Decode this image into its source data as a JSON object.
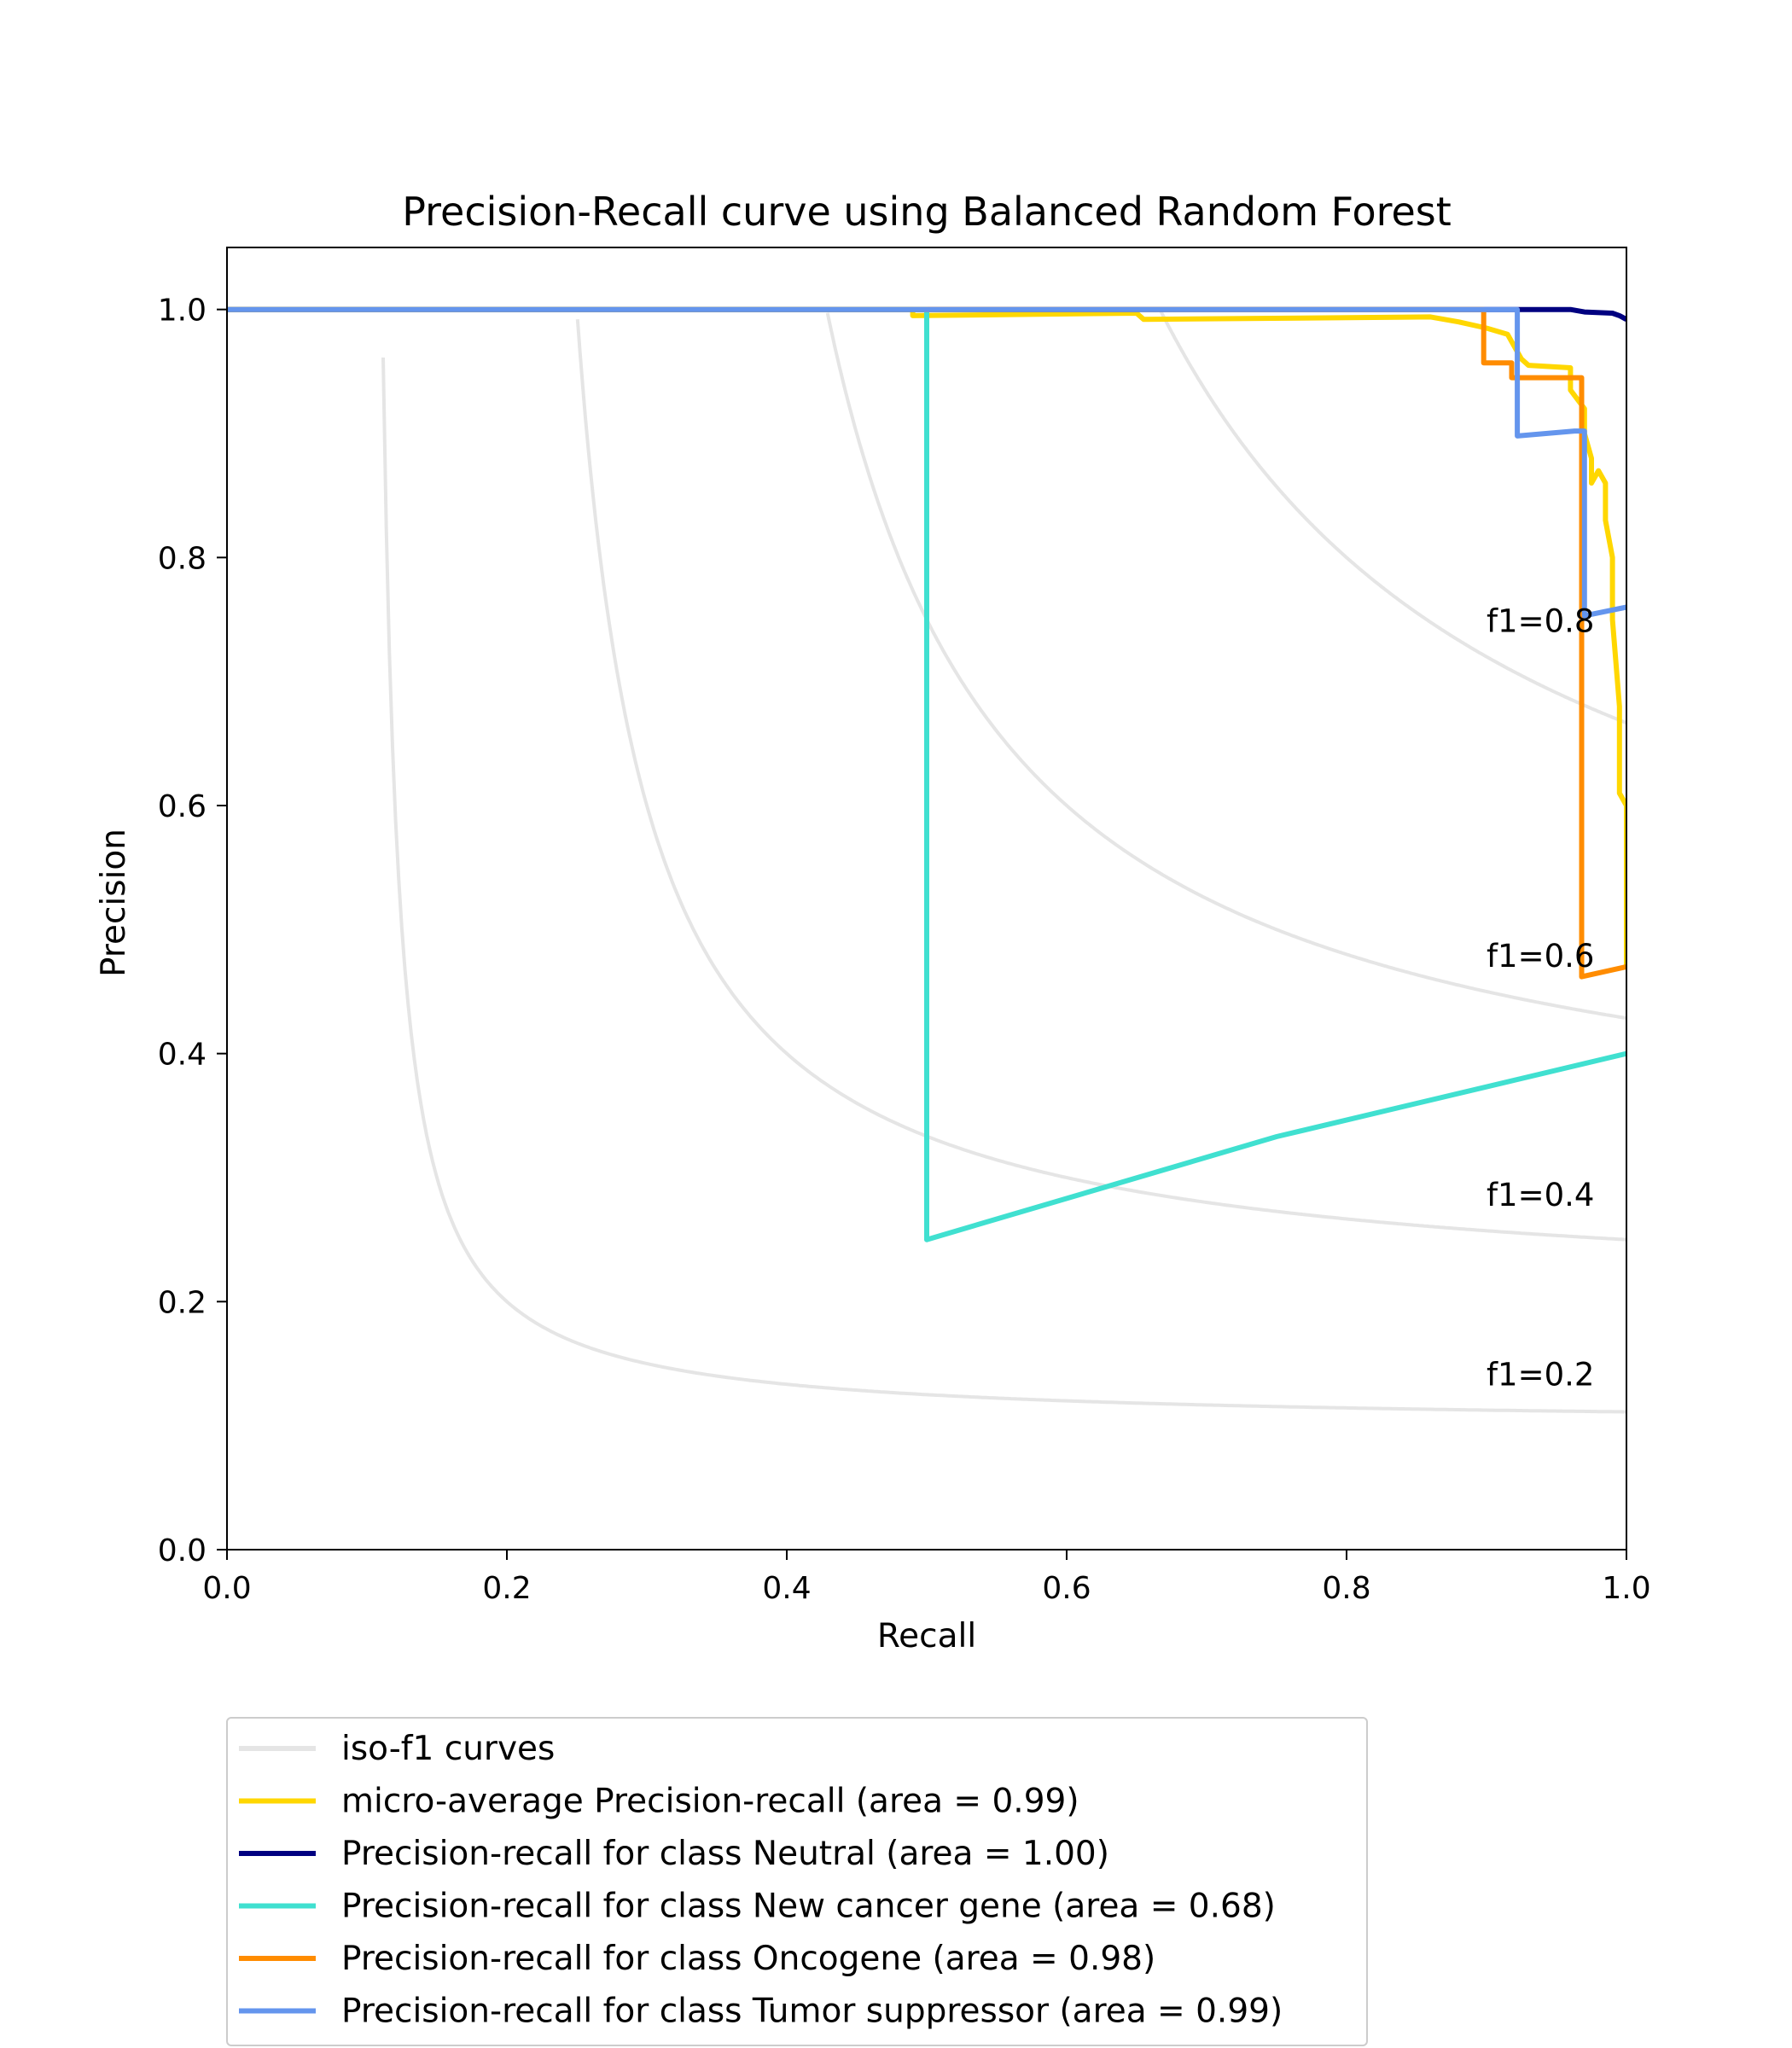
{
  "chart_data": {
    "type": "line",
    "title": "Precision-Recall curve using Balanced Random Forest",
    "xlabel": "Recall",
    "ylabel": "Precision",
    "xlim": [
      0.0,
      1.0
    ],
    "ylim": [
      0.0,
      1.05
    ],
    "xticks": [
      "0.0",
      "0.2",
      "0.4",
      "0.6",
      "0.8",
      "1.0"
    ],
    "yticks": [
      "0.0",
      "0.2",
      "0.4",
      "0.6",
      "0.8",
      "1.0"
    ],
    "grid": false,
    "legend_position": "below plot",
    "iso_f1": {
      "legend": "iso-f1 curves",
      "color": "#e5e5e5",
      "values": [
        0.2,
        0.4,
        0.6,
        0.8
      ],
      "labels": [
        "f1=0.2",
        "f1=0.4",
        "f1=0.6",
        "f1=0.8"
      ],
      "label_recall": 0.9
    },
    "series": [
      {
        "name": "micro-average Precision-recall (area = 0.99)",
        "color": "#ffd700",
        "points": [
          [
            0.0,
            1.0
          ],
          [
            0.49,
            1.0
          ],
          [
            0.49,
            0.995
          ],
          [
            0.65,
            0.997
          ],
          [
            0.655,
            0.992
          ],
          [
            0.86,
            0.994
          ],
          [
            0.88,
            0.99
          ],
          [
            0.9,
            0.985
          ],
          [
            0.915,
            0.98
          ],
          [
            0.92,
            0.97
          ],
          [
            0.925,
            0.96
          ],
          [
            0.93,
            0.955
          ],
          [
            0.96,
            0.953
          ],
          [
            0.96,
            0.935
          ],
          [
            0.97,
            0.92
          ],
          [
            0.97,
            0.9
          ],
          [
            0.975,
            0.88
          ],
          [
            0.975,
            0.86
          ],
          [
            0.98,
            0.87
          ],
          [
            0.985,
            0.86
          ],
          [
            0.985,
            0.83
          ],
          [
            0.99,
            0.8
          ],
          [
            0.99,
            0.75
          ],
          [
            0.995,
            0.68
          ],
          [
            0.995,
            0.61
          ],
          [
            1.0,
            0.6
          ],
          [
            1.0,
            0.555
          ],
          [
            1.0,
            0.47
          ]
        ]
      },
      {
        "name": "Precision-recall for class Neutral (area = 1.00)",
        "color": "#000080",
        "points": [
          [
            0.0,
            1.0
          ],
          [
            0.92,
            1.0
          ],
          [
            0.96,
            1.0
          ],
          [
            0.97,
            0.998
          ],
          [
            0.99,
            0.997
          ],
          [
            0.995,
            0.995
          ],
          [
            1.0,
            0.992
          ]
        ]
      },
      {
        "name": "Precision-recall for class New cancer gene (area = 0.68)",
        "color": "#40e0d0",
        "points": [
          [
            0.0,
            1.0
          ],
          [
            0.5,
            1.0
          ],
          [
            0.5,
            0.25
          ],
          [
            0.75,
            0.333
          ],
          [
            1.0,
            0.4
          ]
        ]
      },
      {
        "name": "Precision-recall for class Oncogene (area = 0.98)",
        "color": "#ff8c00",
        "points": [
          [
            0.0,
            1.0
          ],
          [
            0.898,
            1.0
          ],
          [
            0.898,
            0.957
          ],
          [
            0.918,
            0.957
          ],
          [
            0.918,
            0.945
          ],
          [
            0.968,
            0.945
          ],
          [
            0.968,
            0.462
          ],
          [
            1.0,
            0.47
          ]
        ]
      },
      {
        "name": "Precision-recall for class Tumor suppressor (area = 0.99)",
        "color": "#6495ed",
        "points": [
          [
            0.0,
            1.0
          ],
          [
            0.922,
            1.0
          ],
          [
            0.922,
            0.898
          ],
          [
            0.963,
            0.902
          ],
          [
            0.97,
            0.902
          ],
          [
            0.97,
            0.753
          ],
          [
            1.0,
            0.76
          ]
        ]
      }
    ]
  }
}
